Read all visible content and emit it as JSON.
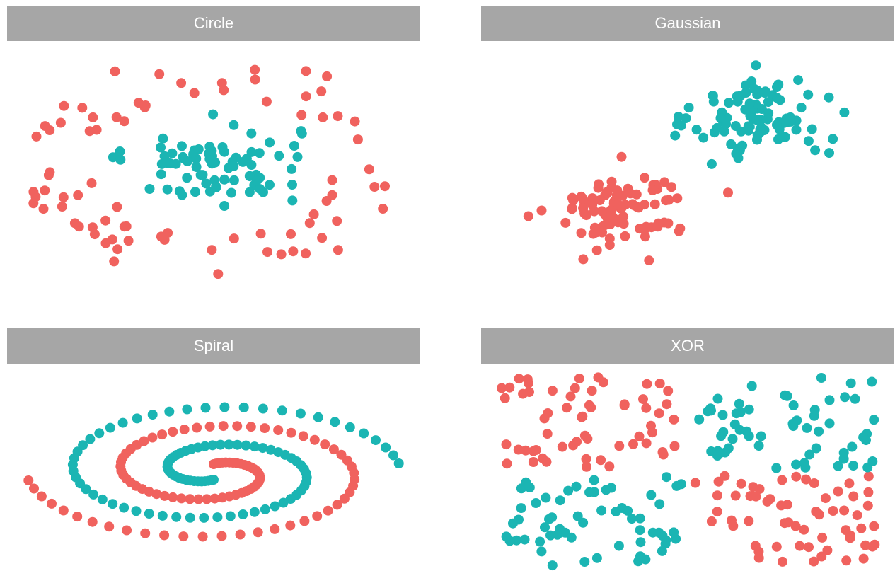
{
  "colors": {
    "class_a": "#f0625e",
    "class_b": "#1bb5b3",
    "strip": "#a6a6a6"
  },
  "chart_data": [
    {
      "type": "scatter",
      "title": "Circle",
      "xlim": [
        -6,
        6
      ],
      "ylim": [
        -6,
        6
      ],
      "grid": false,
      "legend": "none",
      "series": [
        {
          "class": "a",
          "ring": [
            3.5,
            5.8
          ],
          "n": 80
        },
        {
          "class": "b",
          "blob": [
            0,
            0.2,
            1.3,
            1.0
          ],
          "n": 80
        }
      ]
    },
    {
      "type": "scatter",
      "title": "Gaussian",
      "xlim": [
        -6,
        6
      ],
      "ylim": [
        -6,
        6
      ],
      "grid": false,
      "legend": "none",
      "series": [
        {
          "class": "a",
          "blob": [
            -2.0,
            -2.0,
            1.0,
            1.0
          ],
          "n": 95
        },
        {
          "class": "b",
          "blob": [
            2.2,
            2.5,
            1.0,
            1.0
          ],
          "n": 95
        }
      ]
    },
    {
      "type": "scatter",
      "title": "Spiral",
      "xlim": [
        -6,
        6
      ],
      "ylim": [
        -6,
        6
      ],
      "grid": false,
      "legend": "none",
      "series": [
        {
          "class": "a",
          "spiral": 0,
          "n": 95
        },
        {
          "class": "b",
          "spiral": 1,
          "n": 95
        }
      ]
    },
    {
      "type": "scatter",
      "title": "XOR",
      "xlim": [
        -5,
        5
      ],
      "ylim": [
        -5,
        5
      ],
      "grid": false,
      "legend": "none",
      "series": [
        {
          "class": "a",
          "quadrants": [
            "top-left",
            "bottom-right"
          ],
          "n": 120
        },
        {
          "class": "b",
          "quadrants": [
            "top-right",
            "bottom-left"
          ],
          "n": 120
        }
      ]
    }
  ]
}
